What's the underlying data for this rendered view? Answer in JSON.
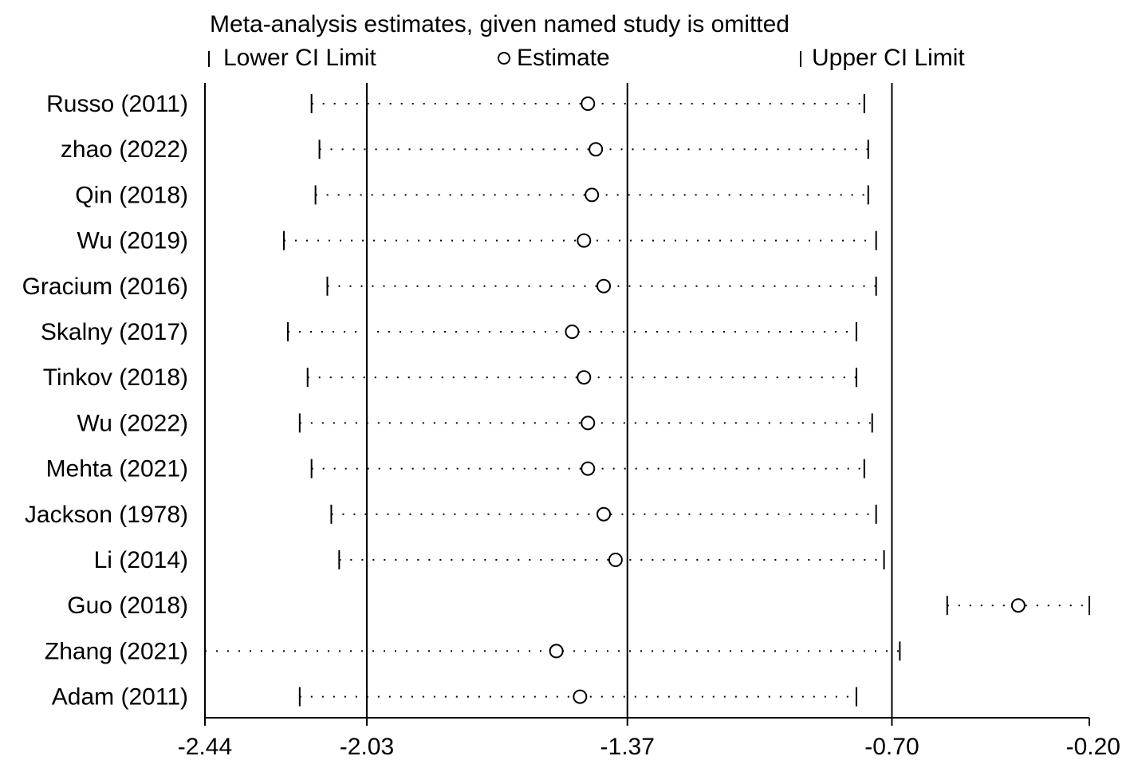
{
  "chart_data": {
    "type": "forest",
    "title": "Meta-analysis estimates, given named study is omitted",
    "legend": [
      {
        "key": "lower",
        "label": "Lower CI Limit"
      },
      {
        "key": "estimate",
        "label": "Estimate"
      },
      {
        "key": "upper",
        "label": "Upper CI Limit"
      }
    ],
    "legend_position": "top",
    "xlim": [
      -2.44,
      -0.2
    ],
    "xticks": [
      -2.44,
      -2.03,
      -1.37,
      -0.7,
      -0.2
    ],
    "xtick_labels": [
      "-2.44",
      "-2.03",
      "-1.37",
      "-0.70",
      "-0.20"
    ],
    "reference_lines": [
      -2.03,
      -1.37,
      -0.7
    ],
    "studies": [
      {
        "name": "Russo (2011)",
        "lower": -2.17,
        "estimate": -1.47,
        "upper": -0.77
      },
      {
        "name": "zhao (2022)",
        "lower": -2.15,
        "estimate": -1.45,
        "upper": -0.76
      },
      {
        "name": "Qin (2018)",
        "lower": -2.16,
        "estimate": -1.46,
        "upper": -0.76
      },
      {
        "name": "Wu (2019)",
        "lower": -2.24,
        "estimate": -1.48,
        "upper": -0.74
      },
      {
        "name": "Gracium (2016)",
        "lower": -2.13,
        "estimate": -1.43,
        "upper": -0.74
      },
      {
        "name": "Skalny (2017)",
        "lower": -2.23,
        "estimate": -1.51,
        "upper": -0.79
      },
      {
        "name": "Tinkov (2018)",
        "lower": -2.18,
        "estimate": -1.48,
        "upper": -0.79
      },
      {
        "name": "Wu (2022)",
        "lower": -2.2,
        "estimate": -1.47,
        "upper": -0.75
      },
      {
        "name": "Mehta (2021)",
        "lower": -2.17,
        "estimate": -1.47,
        "upper": -0.77
      },
      {
        "name": "Jackson (1978)",
        "lower": -2.12,
        "estimate": -1.43,
        "upper": -0.74
      },
      {
        "name": "Li (2014)",
        "lower": -2.1,
        "estimate": -1.4,
        "upper": -0.72
      },
      {
        "name": "Guo (2018)",
        "lower": -0.56,
        "estimate": -0.38,
        "upper": -0.2
      },
      {
        "name": "Zhang (2021)",
        "lower": -2.44,
        "estimate": -1.55,
        "upper": -0.68
      },
      {
        "name": "Adam (2011)",
        "lower": -2.2,
        "estimate": -1.49,
        "upper": -0.79
      }
    ]
  }
}
